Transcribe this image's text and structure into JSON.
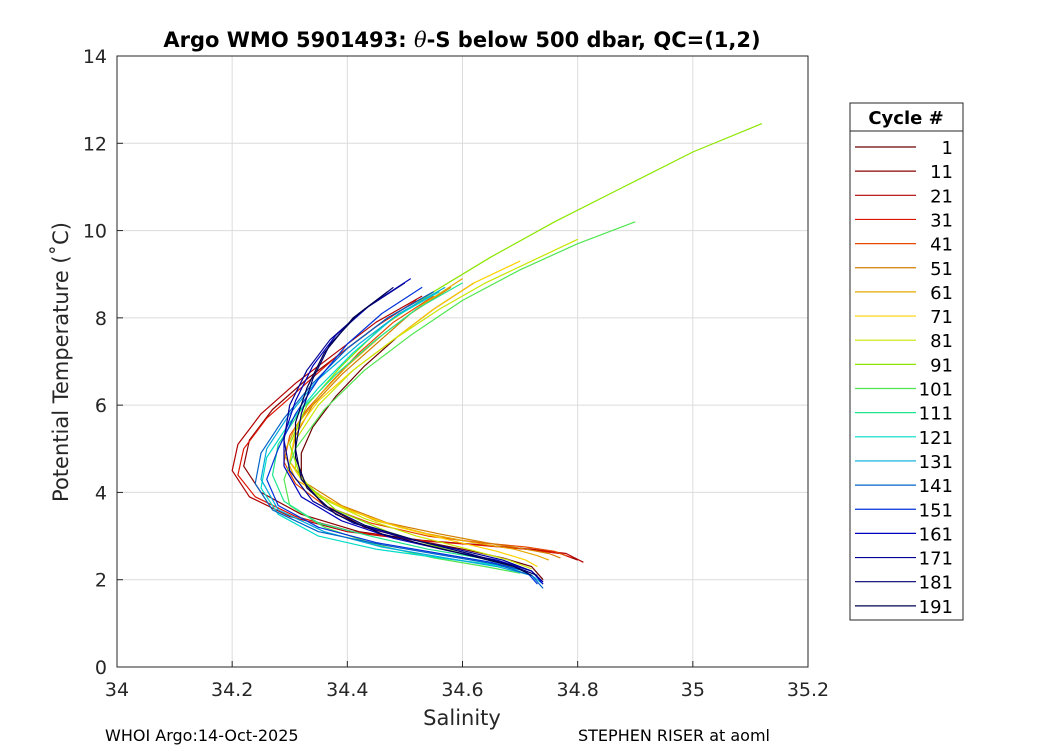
{
  "chart_data": {
    "type": "line",
    "title_prefix": "Argo WMO 5901493: ",
    "title_theta": "θ",
    "title_suffix": "-S below 500 dbar,  QC=(1,2)",
    "xlabel": "Salinity",
    "ylabel": "Potential Temperature (˚C)",
    "xlim": [
      34.0,
      35.2
    ],
    "ylim": [
      0,
      14
    ],
    "xticks": [
      34,
      34.2,
      34.4,
      34.6,
      34.8,
      35,
      35.2
    ],
    "xtick_labels": [
      "34",
      "34.2",
      "34.4",
      "34.6",
      "34.8",
      "35",
      "35.2"
    ],
    "yticks": [
      0,
      2,
      4,
      6,
      8,
      10,
      12,
      14
    ],
    "ytick_labels": [
      "0",
      "2",
      "4",
      "6",
      "8",
      "10",
      "12",
      "14"
    ],
    "grid": true,
    "legend_title": "Cycle #",
    "legend_position": "right-outside",
    "series": [
      {
        "name": "1",
        "color": "#6b0000",
        "s": [
          34.62,
          34.55,
          34.49,
          34.43,
          34.38,
          34.34,
          34.32,
          34.32,
          34.36,
          34.43,
          34.52,
          34.6,
          34.67,
          34.72,
          34.74
        ],
        "t": [
          8.8,
          8.2,
          7.6,
          6.9,
          6.2,
          5.5,
          4.9,
          4.3,
          3.7,
          3.2,
          2.9,
          2.7,
          2.5,
          2.3,
          2.0
        ]
      },
      {
        "name": "11",
        "color": "#8c0000",
        "s": [
          34.55,
          34.47,
          34.4,
          34.33,
          34.27,
          34.23,
          34.22,
          34.25,
          34.32,
          34.42,
          34.53,
          34.63,
          34.71,
          34.77,
          34.8
        ],
        "t": [
          8.6,
          8.0,
          7.3,
          6.6,
          5.9,
          5.2,
          4.6,
          4.0,
          3.5,
          3.1,
          2.9,
          2.8,
          2.7,
          2.6,
          2.45
        ]
      },
      {
        "name": "21",
        "color": "#b20000",
        "s": [
          34.53,
          34.45,
          34.38,
          34.31,
          34.25,
          34.21,
          34.2,
          34.23,
          34.3,
          34.4,
          34.52,
          34.63,
          34.72,
          34.78,
          34.81
        ],
        "t": [
          8.5,
          7.9,
          7.2,
          6.5,
          5.8,
          5.1,
          4.5,
          3.9,
          3.45,
          3.1,
          2.9,
          2.8,
          2.7,
          2.6,
          2.4
        ]
      },
      {
        "name": "31",
        "color": "#dc1400",
        "s": [
          34.52,
          34.45,
          34.38,
          34.32,
          34.26,
          34.22,
          34.21,
          34.24,
          34.31,
          34.41,
          34.52,
          34.62,
          34.71,
          34.77,
          34.79
        ],
        "t": [
          8.4,
          7.8,
          7.1,
          6.4,
          5.7,
          5.0,
          4.4,
          3.9,
          3.45,
          3.1,
          2.9,
          2.8,
          2.7,
          2.6,
          2.5
        ]
      },
      {
        "name": "41",
        "color": "#e64a00",
        "s": [
          34.55,
          34.48,
          34.42,
          34.37,
          34.33,
          34.3,
          34.29,
          34.31,
          34.36,
          34.44,
          34.54,
          34.63,
          34.71,
          34.76,
          34.78
        ],
        "t": [
          8.5,
          7.9,
          7.2,
          6.5,
          5.9,
          5.3,
          4.7,
          4.2,
          3.7,
          3.3,
          3.0,
          2.85,
          2.75,
          2.65,
          2.55
        ]
      },
      {
        "name": "51",
        "color": "#d27f00",
        "s": [
          34.58,
          34.51,
          34.45,
          34.39,
          34.34,
          34.31,
          34.3,
          34.33,
          34.39,
          34.47,
          34.56,
          34.64,
          34.71,
          34.75,
          34.77
        ],
        "t": [
          8.7,
          8.1,
          7.4,
          6.7,
          6.0,
          5.3,
          4.7,
          4.2,
          3.7,
          3.3,
          3.05,
          2.85,
          2.7,
          2.6,
          2.5
        ]
      },
      {
        "name": "61",
        "color": "#e6a800",
        "s": [
          34.6,
          34.53,
          34.46,
          34.4,
          34.35,
          34.31,
          34.29,
          34.31,
          34.37,
          34.45,
          34.54,
          34.62,
          34.69,
          34.73,
          34.75
        ],
        "t": [
          8.9,
          8.3,
          7.6,
          6.9,
          6.2,
          5.5,
          4.9,
          4.3,
          3.8,
          3.35,
          3.05,
          2.85,
          2.7,
          2.55,
          2.45
        ]
      },
      {
        "name": "71",
        "color": "#ffd200",
        "s": [
          34.7,
          34.62,
          34.55,
          34.48,
          34.41,
          34.35,
          34.31,
          34.3,
          34.33,
          34.4,
          34.49,
          34.58,
          34.66,
          34.71,
          34.73
        ],
        "t": [
          9.3,
          8.8,
          8.2,
          7.5,
          6.8,
          6.1,
          5.4,
          4.7,
          4.1,
          3.6,
          3.2,
          2.9,
          2.65,
          2.45,
          2.3
        ]
      },
      {
        "name": "81",
        "color": "#c8e600",
        "s": [
          34.8,
          34.72,
          34.64,
          34.56,
          34.48,
          34.41,
          34.35,
          34.31,
          34.31,
          34.35,
          34.43,
          34.52,
          34.61,
          34.68,
          34.72
        ],
        "t": [
          9.8,
          9.3,
          8.8,
          8.2,
          7.5,
          6.8,
          6.0,
          5.2,
          4.5,
          3.9,
          3.4,
          3.0,
          2.7,
          2.45,
          2.25
        ]
      },
      {
        "name": "91",
        "color": "#8ce600",
        "s": [
          35.12,
          35.0,
          34.88,
          34.76,
          34.65,
          34.55,
          34.46,
          34.39,
          34.33,
          34.3,
          34.32,
          34.38,
          34.47,
          34.57,
          34.66,
          34.71
        ],
        "t": [
          12.45,
          11.8,
          11.0,
          10.2,
          9.4,
          8.6,
          7.8,
          6.9,
          6.0,
          5.1,
          4.3,
          3.6,
          3.1,
          2.7,
          2.4,
          2.2
        ]
      },
      {
        "name": "101",
        "color": "#50e650",
        "s": [
          34.9,
          34.8,
          34.7,
          34.6,
          34.51,
          34.43,
          34.36,
          34.31,
          34.29,
          34.3,
          34.36,
          34.45,
          34.55,
          34.64,
          34.7
        ],
        "t": [
          10.2,
          9.7,
          9.1,
          8.4,
          7.6,
          6.8,
          5.9,
          5.0,
          4.3,
          3.7,
          3.2,
          2.8,
          2.5,
          2.3,
          2.15
        ]
      },
      {
        "name": "111",
        "color": "#1ee68c",
        "s": [
          34.6,
          34.52,
          34.45,
          34.38,
          34.32,
          34.28,
          34.27,
          34.29,
          34.35,
          34.44,
          34.54,
          34.63,
          34.69,
          34.72
        ],
        "t": [
          8.8,
          8.2,
          7.5,
          6.7,
          5.9,
          5.1,
          4.4,
          3.8,
          3.3,
          3.0,
          2.7,
          2.5,
          2.3,
          2.1
        ]
      },
      {
        "name": "121",
        "color": "#00dcc8",
        "s": [
          34.56,
          34.48,
          34.41,
          34.35,
          34.3,
          34.26,
          34.25,
          34.28,
          34.35,
          34.45,
          34.56,
          34.65,
          34.71
        ],
        "t": [
          8.6,
          8.0,
          7.2,
          6.4,
          5.6,
          4.8,
          4.1,
          3.5,
          3.0,
          2.7,
          2.5,
          2.35,
          2.2
        ]
      },
      {
        "name": "131",
        "color": "#00aadc",
        "s": [
          34.57,
          34.49,
          34.42,
          34.35,
          34.3,
          34.26,
          34.25,
          34.28,
          34.36,
          34.46,
          34.57,
          34.66,
          34.72,
          34.74
        ],
        "t": [
          8.7,
          8.1,
          7.4,
          6.6,
          5.8,
          5.0,
          4.3,
          3.6,
          3.1,
          2.75,
          2.5,
          2.3,
          2.1,
          1.9
        ]
      },
      {
        "name": "141",
        "color": "#0064c8",
        "s": [
          34.55,
          34.47,
          34.4,
          34.34,
          34.29,
          34.25,
          34.24,
          34.27,
          34.35,
          34.46,
          34.57,
          34.66,
          34.72,
          34.74
        ],
        "t": [
          8.6,
          8.0,
          7.3,
          6.5,
          5.7,
          4.9,
          4.2,
          3.6,
          3.1,
          2.8,
          2.55,
          2.35,
          2.1,
          1.8
        ]
      },
      {
        "name": "151",
        "color": "#0032dc",
        "s": [
          34.53,
          34.46,
          34.4,
          34.35,
          34.31,
          34.28,
          34.26,
          34.28,
          34.35,
          34.45,
          34.56,
          34.65,
          34.71,
          34.73
        ],
        "t": [
          8.7,
          8.1,
          7.4,
          6.6,
          5.8,
          5.0,
          4.3,
          3.7,
          3.2,
          2.85,
          2.6,
          2.4,
          2.2,
          1.9
        ]
      },
      {
        "name": "161",
        "color": "#0000be",
        "s": [
          34.51,
          34.44,
          34.38,
          34.34,
          34.31,
          34.29,
          34.29,
          34.32,
          34.39,
          34.48,
          34.58,
          34.66,
          34.72,
          34.74
        ],
        "t": [
          8.9,
          8.3,
          7.6,
          6.9,
          6.1,
          5.3,
          4.6,
          3.9,
          3.35,
          2.95,
          2.65,
          2.45,
          2.2,
          1.9
        ]
      },
      {
        "name": "171",
        "color": "#000096",
        "s": [
          34.5,
          34.43,
          34.37,
          34.33,
          34.3,
          34.29,
          34.3,
          34.34,
          34.41,
          34.5,
          34.59,
          34.67,
          34.72,
          34.74
        ],
        "t": [
          8.8,
          8.2,
          7.5,
          6.8,
          6.0,
          5.2,
          4.5,
          3.8,
          3.3,
          2.95,
          2.7,
          2.45,
          2.2,
          1.95
        ]
      },
      {
        "name": "181",
        "color": "#00006e",
        "s": [
          34.48,
          34.42,
          34.37,
          34.34,
          34.32,
          34.31,
          34.32,
          34.36,
          34.43,
          34.52,
          34.61,
          34.68,
          34.73
        ],
        "t": [
          8.7,
          8.1,
          7.4,
          6.6,
          5.8,
          5.0,
          4.3,
          3.7,
          3.25,
          2.9,
          2.6,
          2.35,
          2.1
        ]
      },
      {
        "name": "191",
        "color": "#000050",
        "s": [
          34.47,
          34.41,
          34.36,
          34.33,
          34.31,
          34.31,
          34.33,
          34.38,
          34.46,
          34.55,
          34.63,
          34.69,
          34.72
        ],
        "t": [
          8.6,
          8.0,
          7.2,
          6.4,
          5.6,
          4.8,
          4.1,
          3.5,
          3.05,
          2.75,
          2.5,
          2.3,
          2.1
        ]
      }
    ]
  },
  "footer": {
    "left": "WHOI Argo:14-Oct-2025",
    "right": "STEPHEN RISER at aoml"
  }
}
